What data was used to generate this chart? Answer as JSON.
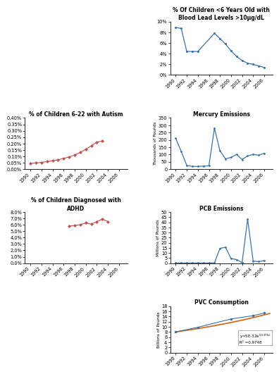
{
  "lead_years": [
    1990,
    1991,
    1992,
    1993,
    1994,
    1997,
    1998,
    1999,
    2000,
    2001,
    2002,
    2003,
    2004,
    2005,
    2006
  ],
  "lead_values": [
    8.9,
    8.7,
    4.4,
    4.4,
    4.4,
    7.8,
    6.8,
    5.8,
    4.5,
    3.5,
    2.7,
    2.2,
    2.0,
    1.7,
    1.4
  ],
  "lead_title": "% Of Children <6 Years Old with\nBlood Lead Levels >10μg/dL",
  "lead_ylim": [
    0,
    10
  ],
  "lead_yticks": [
    0,
    2,
    4,
    6,
    8,
    10
  ],
  "lead_ytick_labels": [
    "0%",
    "2%",
    "4%",
    "6%",
    "8%",
    "10%"
  ],
  "autism_years": [
    1990,
    1991,
    1992,
    1993,
    1994,
    1995,
    1996,
    1997,
    1998,
    1999,
    2000,
    2001,
    2002,
    2003
  ],
  "autism_values": [
    0.00045,
    0.00048,
    0.00052,
    0.00058,
    0.00065,
    0.00073,
    0.00083,
    0.00095,
    0.0011,
    0.0013,
    0.00155,
    0.00182,
    0.0021,
    0.0022
  ],
  "autism_title": "% of Children 6-22 with Autism",
  "autism_ylim": [
    0,
    0.004
  ],
  "autism_yticks": [
    0.0,
    0.0005,
    0.001,
    0.0015,
    0.002,
    0.0025,
    0.003,
    0.0035,
    0.004
  ],
  "autism_ytick_labels": [
    "0.00%",
    "0.05%",
    "0.10%",
    "0.15%",
    "0.20%",
    "0.25%",
    "0.30%",
    "0.35%",
    "0.40%"
  ],
  "adhd_years": [
    1997,
    1998,
    1999,
    2000,
    2001,
    2002,
    2003,
    2004
  ],
  "adhd_values": [
    0.058,
    0.059,
    0.06,
    0.063,
    0.061,
    0.065,
    0.069,
    0.065
  ],
  "adhd_title": "% of Children Diagnosed with\nADHD",
  "adhd_ylim": [
    0,
    0.08
  ],
  "adhd_yticks": [
    0.0,
    0.01,
    0.02,
    0.03,
    0.04,
    0.05,
    0.06,
    0.07,
    0.08
  ],
  "adhd_ytick_labels": [
    "0.0%",
    "1.0%",
    "2.0%",
    "3.0%",
    "4.0%",
    "5.0%",
    "6.0%",
    "7.0%",
    "8.0%"
  ],
  "mercury_years": [
    1990,
    1991,
    1992,
    1993,
    1994,
    1995,
    1996,
    1997,
    1998,
    1999,
    2000,
    2001,
    2002,
    2003,
    2004,
    2005,
    2006
  ],
  "mercury_values": [
    210,
    120,
    25,
    18,
    18,
    20,
    22,
    280,
    125,
    70,
    80,
    100,
    65,
    90,
    100,
    95,
    108
  ],
  "mercury_title": "Mercury Emissions",
  "mercury_ylabel": "Thousands of Pounds",
  "mercury_ylim": [
    0,
    350
  ],
  "mercury_yticks": [
    0,
    50,
    100,
    150,
    200,
    250,
    300,
    350
  ],
  "pcb_years": [
    1990,
    1991,
    1992,
    1993,
    1994,
    1995,
    1996,
    1997,
    1998,
    1999,
    2000,
    2001,
    2002,
    2003,
    2004,
    2005,
    2006
  ],
  "pcb_values": [
    0.1,
    0.1,
    0.1,
    0.1,
    0.1,
    0.1,
    0.1,
    0.2,
    14.5,
    15.5,
    4.5,
    3.5,
    0.5,
    43.0,
    2.0,
    1.5,
    2.5
  ],
  "pcb_title": "PCB Emissions",
  "pcb_ylabel": "Millions of Pounds",
  "pcb_ylim": [
    0,
    50
  ],
  "pcb_yticks": [
    0,
    5,
    10,
    15,
    20,
    25,
    30,
    35,
    40,
    45,
    50
  ],
  "pvc_years": [
    1990,
    1994,
    2000,
    2004,
    2006
  ],
  "pvc_values": [
    8.0,
    9.8,
    13.0,
    14.3,
    15.3
  ],
  "pvc_title": "PVC Consumption",
  "pvc_ylabel": "Billions of Pounds",
  "pvc_ylim": [
    0,
    18
  ],
  "pvc_yticks": [
    0,
    2,
    4,
    6,
    8,
    10,
    12,
    14,
    16,
    18
  ],
  "line_color_blue": "#3A72A8",
  "line_color_red": "#C05050",
  "trend_color_orange": "#D4691E",
  "bg_color": "#FFFFFF",
  "xticks_main": [
    1990,
    1992,
    1994,
    1996,
    1998,
    2000,
    2002,
    2004,
    2006
  ]
}
